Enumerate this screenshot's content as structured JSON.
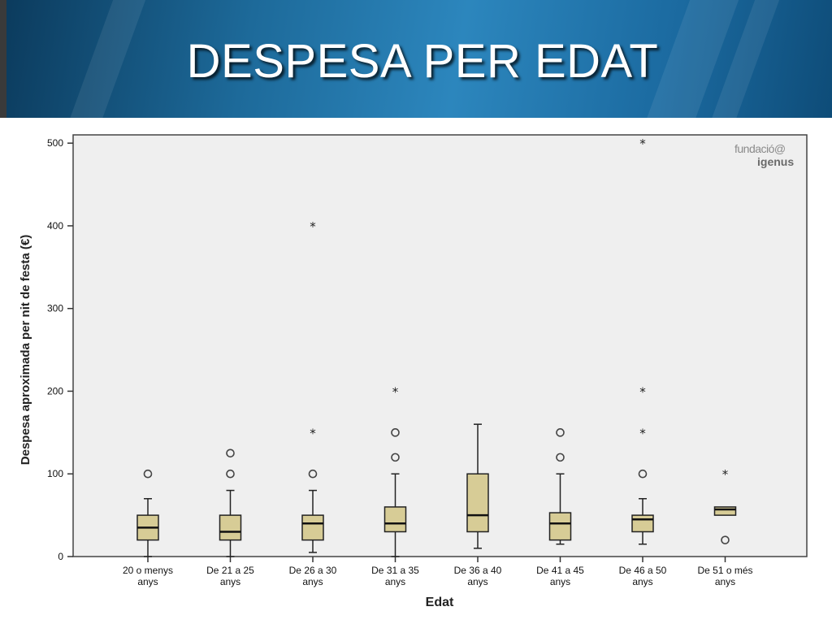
{
  "slide": {
    "title": "DESPESA PER EDAT"
  },
  "logo": {
    "line1": "fundació@",
    "line2": "igenus"
  },
  "colors": {
    "banner": "#1d6a9a",
    "box_fill": "#d7cc96",
    "plot_bg": "#efefef"
  },
  "chart_data": {
    "type": "boxplot",
    "title": "",
    "xlabel": "Edat",
    "ylabel": "Despesa aproximada per nit de festa (€)",
    "ylim": [
      0,
      510
    ],
    "yticks": [
      0,
      100,
      200,
      300,
      400,
      500
    ],
    "grid": false,
    "legend": "none",
    "categories": [
      {
        "label1": "20 o menys",
        "label2": "anys",
        "whisker_low": 0,
        "q1": 20,
        "median": 35,
        "q3": 50,
        "whisker_high": 70,
        "outliers": [
          100
        ],
        "extremes": []
      },
      {
        "label1": "De 21 a 25",
        "label2": "anys",
        "whisker_low": 0,
        "q1": 20,
        "median": 30,
        "q3": 50,
        "whisker_high": 80,
        "outliers": [
          100,
          125
        ],
        "extremes": []
      },
      {
        "label1": "De 26 a 30",
        "label2": "anys",
        "whisker_low": 5,
        "q1": 20,
        "median": 40,
        "q3": 50,
        "whisker_high": 80,
        "outliers": [
          100
        ],
        "extremes": [
          150,
          400
        ]
      },
      {
        "label1": "De 31 a 35",
        "label2": "anys",
        "whisker_low": 0,
        "q1": 30,
        "median": 40,
        "q3": 60,
        "whisker_high": 100,
        "outliers": [
          120,
          150
        ],
        "extremes": [
          200
        ]
      },
      {
        "label1": "De 36 a 40",
        "label2": "anys",
        "whisker_low": 10,
        "q1": 30,
        "median": 50,
        "q3": 100,
        "whisker_high": 160,
        "outliers": [],
        "extremes": []
      },
      {
        "label1": "De 41 a 45",
        "label2": "anys",
        "whisker_low": 15,
        "q1": 20,
        "median": 40,
        "q3": 53,
        "whisker_high": 100,
        "outliers": [
          120,
          150
        ],
        "extremes": []
      },
      {
        "label1": "De 46 a 50",
        "label2": "anys",
        "whisker_low": 15,
        "q1": 30,
        "median": 45,
        "q3": 50,
        "whisker_high": 70,
        "outliers": [
          100
        ],
        "extremes": [
          150,
          200,
          500
        ]
      },
      {
        "label1": "De 51 o més",
        "label2": "anys",
        "whisker_low": null,
        "q1": 50,
        "median": 57,
        "q3": 60,
        "whisker_high": null,
        "outliers": [
          20
        ],
        "extremes": [
          100
        ]
      }
    ]
  }
}
